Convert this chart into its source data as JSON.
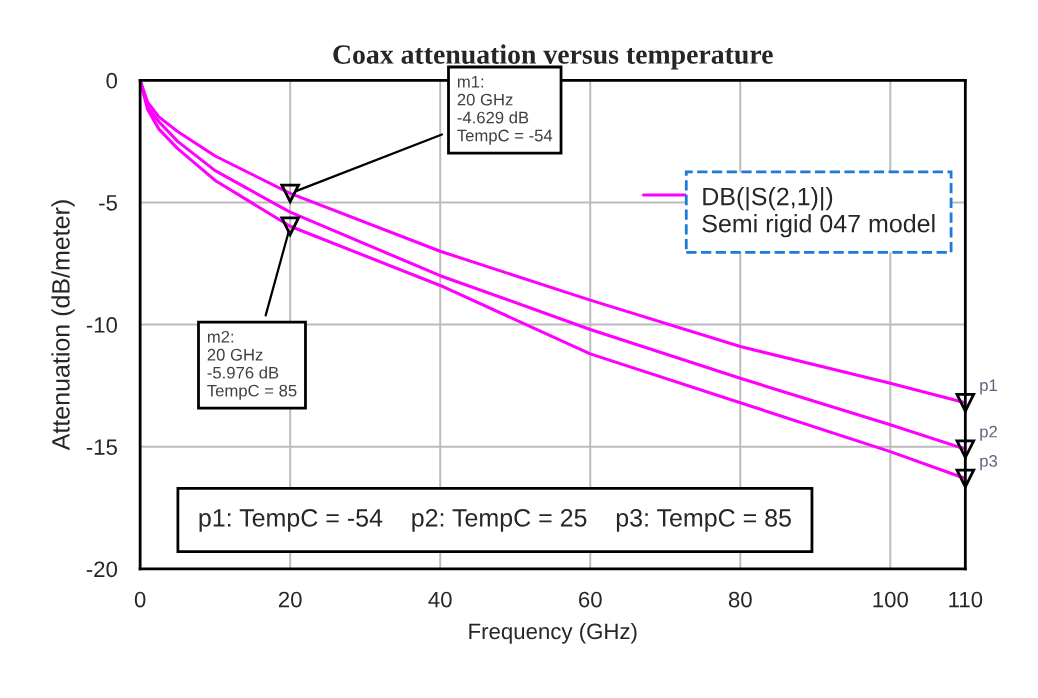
{
  "chart_data": {
    "type": "line",
    "title": "Coax attenuation versus temperature",
    "xlabel": "Frequency (GHz)",
    "ylabel": "Attenuation (dB/meter)",
    "x": [
      0,
      1,
      2.5,
      5,
      10,
      20,
      40,
      60,
      80,
      100,
      110
    ],
    "series": [
      {
        "name": "p1",
        "color": "#ff00ff",
        "values": [
          0,
          -0.9,
          -1.5,
          -2.1,
          -3.1,
          -4.629,
          -7.0,
          -9.0,
          -10.9,
          -12.4,
          -13.2
        ]
      },
      {
        "name": "p2",
        "color": "#ff00ff",
        "values": [
          0,
          -1.1,
          -1.7,
          -2.5,
          -3.7,
          -5.4,
          -8.0,
          -10.2,
          -12.2,
          -14.1,
          -15.1
        ]
      },
      {
        "name": "p3",
        "color": "#ff00ff",
        "values": [
          0,
          -1.2,
          -2.0,
          -2.8,
          -4.1,
          -5.976,
          -8.4,
          -11.2,
          -13.2,
          -15.2,
          -16.3
        ]
      }
    ],
    "xlim": [
      0,
      110
    ],
    "ylim": [
      -20,
      0
    ],
    "xticks": [
      0,
      20,
      40,
      60,
      80,
      100,
      110
    ],
    "yticks": [
      0,
      -5,
      -10,
      -15,
      -20
    ],
    "grid": true,
    "marker": "none",
    "line_style": "solid",
    "annotations": [
      {
        "text": "m1:\n20 GHz\n-4.629 dB\nTempC = -54",
        "x": 20,
        "y": -4.629
      },
      {
        "text": "m2:\n20 GHz\n-5.976 dB\nTempC = 85",
        "x": 20,
        "y": -5.976
      },
      "p1: TempC = -54    p2: TempC = 25    p3: TempC = 85",
      "DB(|S(2,1)|)\nSemi rigid 047 model"
    ]
  }
}
